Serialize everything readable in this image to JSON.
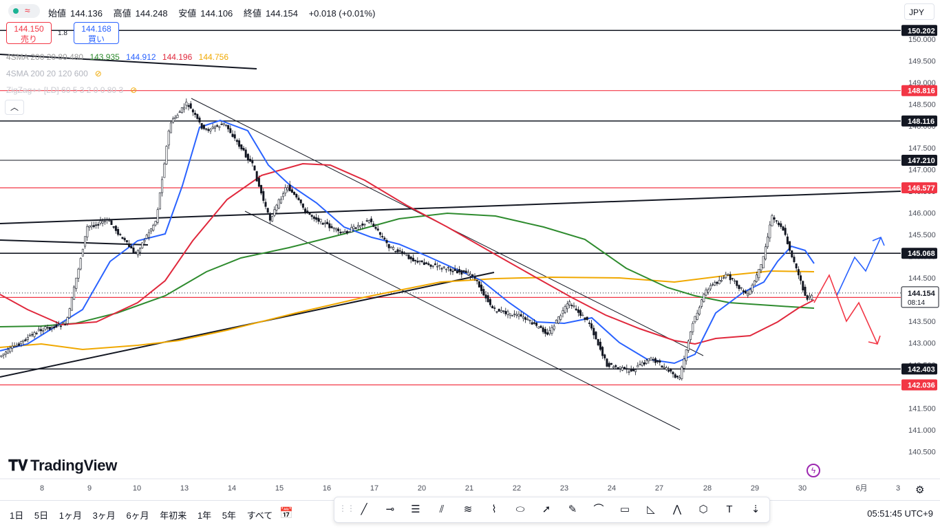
{
  "header": {
    "ohlc": {
      "open_label": "始値",
      "open": "144.136",
      "high_label": "高値",
      "high": "144.248",
      "low_label": "安値",
      "low": "144.106",
      "close_label": "終値",
      "close": "144.154",
      "change": "+0.018 (+0.01%)"
    },
    "currency": "JPY"
  },
  "trade": {
    "sell_price": "144.150",
    "sell_label": "売り",
    "spread": "1.8",
    "buy_price": "144.168",
    "buy_label": "買い"
  },
  "indicators": [
    {
      "name": "4SMA 200 20 80 480",
      "values": [
        "143.935",
        "144.912",
        "144.196",
        "144.756"
      ],
      "colors": [
        "#2e8b2e",
        "#2962ff",
        "#e0283c",
        "#f0a800"
      ]
    },
    {
      "name": "4SMA 200 20 120 600",
      "values": [],
      "colors": []
    },
    {
      "name": "ZigZag++ [LD] 60 5 3 2 0 0 80 3",
      "values": [],
      "colors": []
    }
  ],
  "price_axis": {
    "ticks": [
      "150.000",
      "149.500",
      "149.000",
      "148.500",
      "148.000",
      "147.500",
      "147.000",
      "146.500",
      "146.000",
      "145.500",
      "145.000",
      "144.500",
      "144.000",
      "143.500",
      "143.000",
      "142.500",
      "142.000",
      "141.500",
      "141.000",
      "140.500"
    ],
    "levels": [
      {
        "price": 150.202,
        "label": "150.202",
        "kind": "black"
      },
      {
        "price": 148.816,
        "label": "148.816",
        "kind": "red"
      },
      {
        "price": 148.116,
        "label": "148.116",
        "kind": "black"
      },
      {
        "price": 147.21,
        "label": "147.210",
        "kind": "black"
      },
      {
        "price": 146.577,
        "label": "146.577",
        "kind": "red"
      },
      {
        "price": 145.068,
        "label": "145.068",
        "kind": "black"
      },
      {
        "price": 144.051,
        "label": "144.051",
        "kind": "red"
      },
      {
        "price": 142.403,
        "label": "142.403",
        "kind": "black"
      },
      {
        "price": 142.036,
        "label": "142.036",
        "kind": "red"
      }
    ],
    "current": {
      "price": 144.154,
      "label": "144.154",
      "countdown": "08:14"
    }
  },
  "time_axis": {
    "labels": [
      "8",
      "9",
      "10",
      "13",
      "14",
      "15",
      "16",
      "17",
      "20",
      "21",
      "22",
      "23",
      "24",
      "27",
      "28",
      "29",
      "30",
      "6月",
      "3"
    ]
  },
  "colors": {
    "sma_fast": "#2962ff",
    "sma_mid": "#e0283c",
    "sma_slow": "#2e8b2e",
    "sma_long": "#f0a800",
    "red_level": "#f23645"
  },
  "branding": {
    "logo_text": "TradingView"
  },
  "bottom": {
    "ranges": [
      "1日",
      "5日",
      "1ヶ月",
      "3ヶ月",
      "6ヶ月",
      "年初来",
      "1年",
      "5年",
      "すべて"
    ],
    "clock": "05:51:45 UTC+9"
  },
  "drawing_tools": [
    "trend-line",
    "horizontal-ray",
    "parallel-channel",
    "pitchfork",
    "regression",
    "path",
    "ellipse",
    "arrow",
    "brush",
    "curve",
    "rectangle",
    "triangle",
    "polyline",
    "pattern",
    "text",
    "vertical-line"
  ]
}
